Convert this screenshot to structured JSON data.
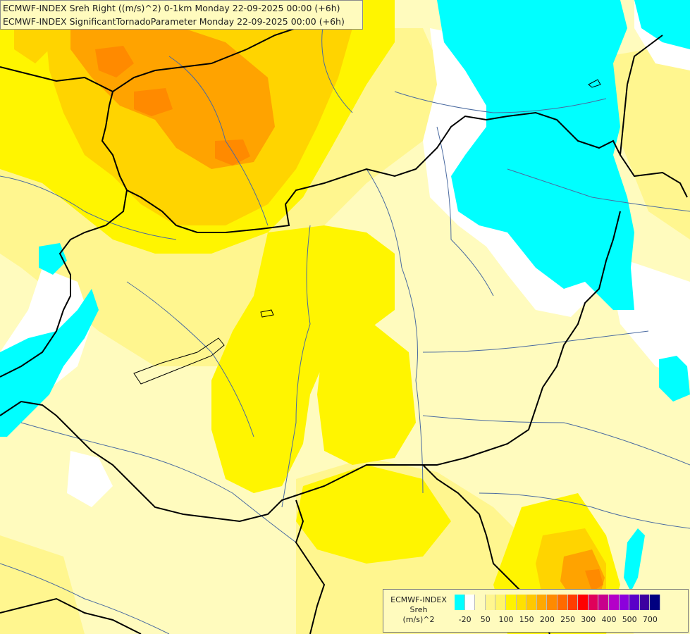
{
  "title": {
    "line1": "ECMWF-INDEX Sreh Right ((m/s)^2) 0-1km Monday 22-09-2025 00:00 (+6h)",
    "line2": "ECMWF-INDEX SignificantTornadoParameter Monday 22-09-2025 00:00 (+6h)"
  },
  "legend": {
    "source": "ECMWF-INDEX",
    "variable": "Sreh",
    "unit": "(m/s)^2",
    "colors": [
      "#00ffff",
      "#ffffff",
      "#fffbbe",
      "#fff68f",
      "#fff56a",
      "#fff200",
      "#ffe000",
      "#ffc800",
      "#ffa800",
      "#ff8a00",
      "#ff6a00",
      "#ff3d00",
      "#ff0000",
      "#e0005a",
      "#c8008c",
      "#b400c8",
      "#8c00dc",
      "#5a00c8",
      "#3c00a0",
      "#000080"
    ],
    "ticks": [
      "-20",
      "50",
      "100",
      "150",
      "200",
      "250",
      "300",
      "400",
      "500",
      "700"
    ]
  },
  "colors": {
    "cyan": "#00ffff",
    "white": "#ffffff",
    "pale": "#fffbbe",
    "lightyellow": "#fff68f",
    "yellow": "#fff500",
    "gold": "#ffd400",
    "orange": "#ffa300",
    "darkorange": "#ff8a00",
    "border": "#000000",
    "river": "#4a6aa0"
  }
}
